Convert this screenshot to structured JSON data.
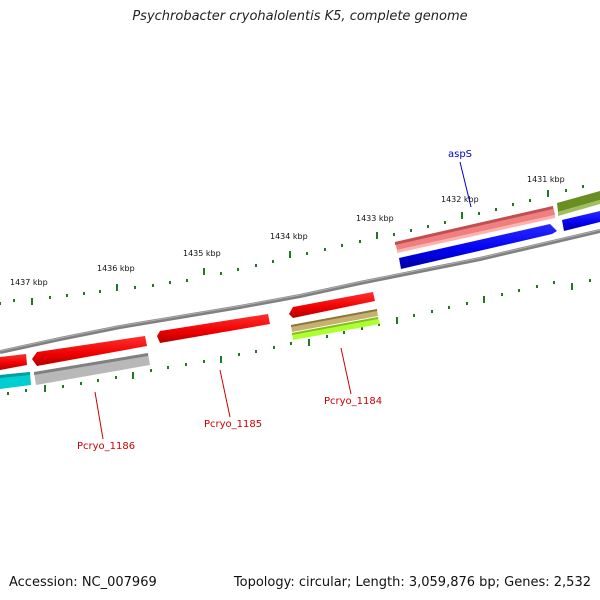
{
  "title": "Psychrobacter cryohalolentis K5, complete genome",
  "footer": {
    "accession": "Accession: NC_007969",
    "summary": "Topology: circular; Length: 3,059,876 bp; Genes: 2,532"
  },
  "ticks": [
    {
      "label": "1431 kbp"
    },
    {
      "label": "1432 kbp"
    },
    {
      "label": "1433 kbp"
    },
    {
      "label": "1434 kbp"
    },
    {
      "label": "1435 kbp"
    },
    {
      "label": "1436 kbp"
    },
    {
      "label": "1437 kbp"
    }
  ],
  "gene_labels": [
    {
      "text": "aspS",
      "color": "#0000cc"
    },
    {
      "text": "Pcryo_1184",
      "color": "#cc0000"
    },
    {
      "text": "Pcryo_1185",
      "color": "#cc0000"
    },
    {
      "text": "Pcryo_1186",
      "color": "#cc0000"
    }
  ],
  "colors": {
    "backbone": "#808080",
    "tick": "#1f7a1f",
    "cds_red": "#ff0000",
    "cds_blue": "#0000ff",
    "cds_pink": "#f08080",
    "cds_olive": "#6b8e23",
    "cds_cyan": "#00ced1",
    "cds_grey": "#b0b0b0",
    "cds_khaki": "#c8b070",
    "cds_lime": "#adff2f"
  }
}
